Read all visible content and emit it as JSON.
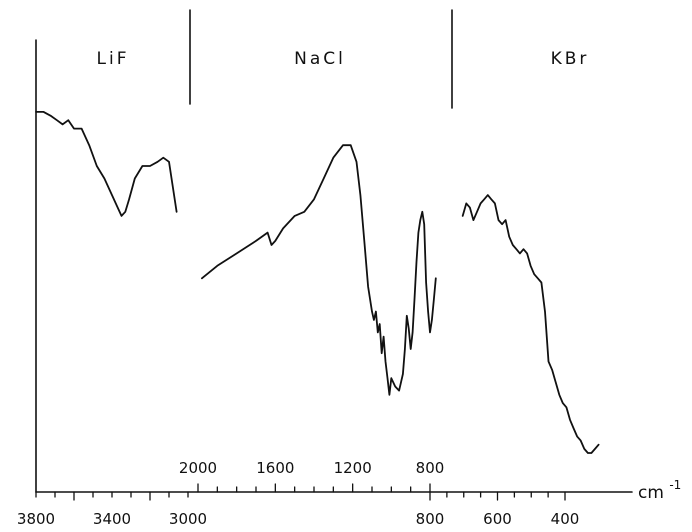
{
  "chart_data": {
    "type": "line",
    "title": "",
    "xlabel": "",
    "ylabel": "",
    "x_unit": "cm",
    "x_unit_superscript": "-1",
    "grid": false,
    "legend": "none",
    "regions": [
      {
        "name": "LiF",
        "label": "LiF",
        "x_range": [
          3800,
          3000
        ]
      },
      {
        "name": "NaCl",
        "label": "NaCl",
        "x_range": [
          2000,
          800
        ]
      },
      {
        "name": "KBr",
        "label": "KBr",
        "x_range": [
          800,
          400
        ]
      }
    ],
    "lower_ticks": [
      {
        "value": 3800,
        "label": "3800"
      },
      {
        "value": 3400,
        "label": "3400"
      },
      {
        "value": 3000,
        "label": "3000"
      },
      {
        "value": 800,
        "label": "800"
      },
      {
        "value": 600,
        "label": "600"
      },
      {
        "value": 400,
        "label": "400"
      }
    ],
    "upper_ticks": [
      {
        "value": 2000,
        "label": "2000"
      },
      {
        "value": 1600,
        "label": "1600"
      },
      {
        "value": 1200,
        "label": "1200"
      },
      {
        "value": 800,
        "label": "800"
      }
    ],
    "y_range": [
      0,
      100
    ],
    "series": [
      {
        "region": "LiF",
        "x": [
          3800,
          3760,
          3720,
          3690,
          3660,
          3630,
          3600,
          3560,
          3520,
          3480,
          3440,
          3400,
          3370,
          3350,
          3330,
          3310,
          3280,
          3240,
          3200,
          3160,
          3130,
          3100,
          3080,
          3060
        ],
        "y": [
          88,
          88,
          87,
          86,
          85,
          86,
          84,
          84,
          80,
          75,
          72,
          68,
          65,
          63,
          64,
          67,
          72,
          75,
          75,
          76,
          77,
          76,
          70,
          64
        ]
      },
      {
        "region": "NaCl",
        "x": [
          1980,
          1900,
          1800,
          1700,
          1640,
          1620,
          1600,
          1560,
          1500,
          1450,
          1400,
          1350,
          1300,
          1250,
          1210,
          1180,
          1160,
          1140,
          1120,
          1100,
          1090,
          1080,
          1070,
          1060,
          1050,
          1040,
          1030,
          1020,
          1010,
          1000,
          980,
          960,
          940,
          930,
          920,
          910,
          900,
          890,
          880,
          870,
          860,
          850,
          840,
          830,
          820,
          810,
          800,
          790,
          780,
          770
        ],
        "y": [
          48,
          51,
          54,
          57,
          59,
          56,
          57,
          60,
          63,
          64,
          67,
          72,
          77,
          80,
          80,
          76,
          68,
          57,
          46,
          40,
          38,
          40,
          35,
          37,
          30,
          34,
          28,
          24,
          20,
          24,
          22,
          21,
          25,
          31,
          39,
          36,
          31,
          35,
          43,
          52,
          59,
          62,
          64,
          61,
          47,
          40,
          35,
          38,
          43,
          48
        ]
      },
      {
        "region": "KBr",
        "x": [
          770,
          760,
          750,
          740,
          730,
          720,
          710,
          700,
          690,
          680,
          670,
          660,
          650,
          640,
          630,
          620,
          610,
          600,
          590,
          580,
          570,
          560,
          550,
          540,
          530,
          520,
          510,
          500,
          490,
          480,
          470,
          460,
          450,
          440,
          430,
          420,
          410,
          400,
          390
        ],
        "y": [
          63,
          66,
          65,
          62,
          64,
          66,
          67,
          68,
          67,
          66,
          62,
          61,
          62,
          58,
          56,
          55,
          54,
          55,
          54,
          51,
          49,
          48,
          47,
          40,
          28,
          26,
          23,
          20,
          18,
          17,
          14,
          12,
          10,
          9,
          7,
          6,
          6,
          7,
          8
        ]
      }
    ]
  }
}
